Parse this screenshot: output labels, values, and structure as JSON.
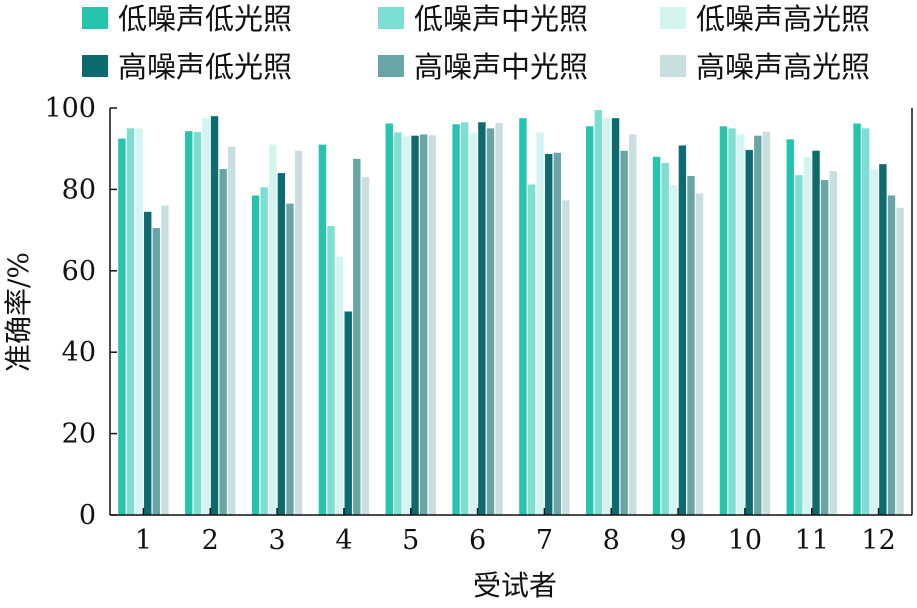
{
  "chart_data": {
    "type": "bar",
    "xlabel": "受试者",
    "ylabel": "准确率/%",
    "ylim": [
      0,
      100
    ],
    "yticks": [
      "0",
      "20",
      "40",
      "60",
      "80",
      "100"
    ],
    "categories": [
      "1",
      "2",
      "3",
      "4",
      "5",
      "6",
      "7",
      "8",
      "9",
      "10",
      "11",
      "12"
    ],
    "grid": false,
    "legend_position": "top",
    "series": [
      {
        "name": "低噪声低光照",
        "color": "#26c4ac",
        "values": [
          92.5,
          94.3,
          78.5,
          91.0,
          96.2,
          96.0,
          97.5,
          95.5,
          88.0,
          95.5,
          92.3,
          96.2
        ]
      },
      {
        "name": "低噪声中光照",
        "color": "#7ddfd2",
        "values": [
          95.0,
          94.1,
          80.5,
          71.0,
          94.0,
          96.5,
          81.2,
          99.5,
          86.5,
          95.0,
          83.5,
          95.0
        ]
      },
      {
        "name": "低噪声高光照",
        "color": "#d2f5ef",
        "values": [
          95.0,
          97.5,
          91.0,
          63.5,
          93.0,
          94.0,
          94.0,
          97.5,
          81.0,
          93.5,
          88.0,
          85.0
        ]
      },
      {
        "name": "高噪声低光照",
        "color": "#0d6b70",
        "values": [
          74.5,
          98.0,
          84.0,
          50.0,
          93.2,
          96.5,
          88.7,
          97.5,
          90.8,
          89.7,
          89.5,
          86.2
        ]
      },
      {
        "name": "高噪声中光照",
        "color": "#6aa5a5",
        "values": [
          70.5,
          85.0,
          76.5,
          87.5,
          93.5,
          95.0,
          89.0,
          89.5,
          83.3,
          93.2,
          82.3,
          78.5
        ]
      },
      {
        "name": "高噪声高光照",
        "color": "#c8dedf",
        "values": [
          76.0,
          90.5,
          89.5,
          83.0,
          93.3,
          96.3,
          77.3,
          93.5,
          79.0,
          94.2,
          84.5,
          75.5
        ]
      }
    ]
  }
}
